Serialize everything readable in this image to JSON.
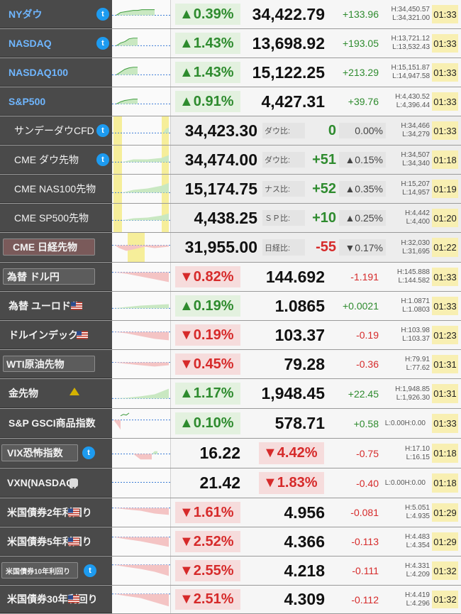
{
  "rows": [
    {
      "name": "NYダウ",
      "pct": "▲0.39%",
      "price": "34,422.79",
      "chg": "+133.96",
      "high": "H:34,450.57",
      "low": "L:34,321.00",
      "time": "01:33"
    },
    {
      "name": "NASDAQ",
      "pct": "▲1.43%",
      "price": "13,698.92",
      "chg": "+193.05",
      "high": "H:13,721.12",
      "low": "L:13,532.43",
      "time": "01:33"
    },
    {
      "name": "NASDAQ100",
      "pct": "▲1.43%",
      "price": "15,122.25",
      "chg": "+213.29",
      "high": "H:15,151.87",
      "low": "L:14,947.58",
      "time": "01:33"
    },
    {
      "name": "S&P500",
      "pct": "▲0.91%",
      "price": "4,427.31",
      "chg": "+39.76",
      "high": "H:4,430.52",
      "low": "L:4,396.44",
      "time": "01:33"
    },
    {
      "name": "サンデーダウCFD",
      "price": "34,423.30",
      "label": "ダウ比:",
      "diff": "0",
      "dpct": "0.00%",
      "high": "H:34,466",
      "low": "L:34,279",
      "time": "01:33"
    },
    {
      "name": "CME ダウ先物",
      "price": "34,474.00",
      "label": "ダウ比:",
      "diff": "+51",
      "dpct": "▲0.15%",
      "high": "H:34,507",
      "low": "L:34,340",
      "time": "01:18"
    },
    {
      "name": "CME NAS100先物",
      "price": "15,174.75",
      "label": "ナス比:",
      "diff": "+52",
      "dpct": "▲0.35%",
      "high": "H:15,207",
      "low": "L:14,957",
      "time": "01:19"
    },
    {
      "name": "CME SP500先物",
      "price": "4,438.25",
      "label": "ＳＰ比:",
      "diff": "+10",
      "dpct": "▲0.25%",
      "high": "H:4,442",
      "low": "L:4,400",
      "time": "01:20"
    },
    {
      "name": "CME 日経先物",
      "price": "31,955.00",
      "label": "日経比:",
      "diff": "-55",
      "dpct": "▼0.17%",
      "high": "H:32,030",
      "low": "L:31,695",
      "time": "01:22"
    },
    {
      "name": "為替 ドル円",
      "pct": "▼0.82%",
      "price": "144.692",
      "chg": "-1.191",
      "high": "H:145.888",
      "low": "L:144.582",
      "time": "01:33"
    },
    {
      "name": "為替 ユーロドル",
      "pct": "▲0.19%",
      "price": "1.0865",
      "chg": "+0.0021",
      "high": "H:1.0871",
      "low": "L:1.0803",
      "time": "01:33"
    },
    {
      "name": "ドルインデックス",
      "pct": "▼0.19%",
      "price": "103.37",
      "chg": "-0.19",
      "high": "H:103.98",
      "low": "L:103.37",
      "time": "01:23"
    },
    {
      "name": "WTI原油先物",
      "pct": "▼0.45%",
      "price": "79.28",
      "chg": "-0.36",
      "high": "H:79.91",
      "low": "L:77.62",
      "time": "01:31"
    },
    {
      "name": "金先物",
      "pct": "▲1.17%",
      "price": "1,948.45",
      "chg": "+22.45",
      "high": "H:1,948.85",
      "low": "L:1,926.30",
      "time": "01:31"
    },
    {
      "name": "S&P GSCI商品指数",
      "pct": "▲0.10%",
      "price": "578.71",
      "chg": "+0.58",
      "high": "L:0.00",
      "low": "H:0.00",
      "time": "01:33"
    },
    {
      "name": "VIX恐怖指数",
      "price": "16.22",
      "pct": "▼4.42%",
      "chg": "-0.75",
      "high": "H:17.10",
      "low": "L:16.15",
      "time": "01:18"
    },
    {
      "name": "VXN(NASDAQ)",
      "price": "21.42",
      "pct": "▼1.83%",
      "chg": "-0.40",
      "high": "L:0.00",
      "low": "H:0.00",
      "time": "01:18"
    },
    {
      "name": "米国債券2年利回り",
      "pct": "▼1.61%",
      "price": "4.956",
      "chg": "-0.081",
      "high": "H:5.051",
      "low": "L:4.935",
      "time": "01:29"
    },
    {
      "name": "米国債券5年利回り",
      "pct": "▼2.52%",
      "price": "4.366",
      "chg": "-0.113",
      "high": "H:4.483",
      "low": "L:4.354",
      "time": "01:29"
    },
    {
      "name": "米国債券10年利回り",
      "pct": "▼2.55%",
      "price": "4.218",
      "chg": "-0.111",
      "high": "H:4.331",
      "low": "L:4.209",
      "time": "01:32"
    },
    {
      "name": "米国債券30年利回り",
      "pct": "▼2.51%",
      "price": "4.309",
      "chg": "-0.112",
      "high": "H:4.419",
      "low": "L:4.296",
      "time": "01:32"
    }
  ],
  "icons": {
    "twitter": "twitter-icon",
    "flag": "us-flag-icon",
    "gold": "gold-icon",
    "person": "user-icon"
  },
  "twitter_glyph": "t"
}
